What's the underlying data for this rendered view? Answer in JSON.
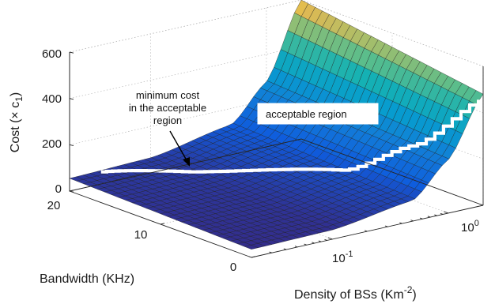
{
  "chart_data": {
    "type": "surface",
    "zlabel": "Cost (× c",
    "zlabel_sub": "1",
    "zlabel_end": ")",
    "xlabel": "Bandwidth (KHz)",
    "ylabel": "Density of BSs (Km",
    "ylabel_sup": "-2",
    "ylabel_end": ")",
    "z_ticks": [
      "0",
      "200",
      "400",
      "600"
    ],
    "z_tick_values": [
      0,
      200,
      400,
      600
    ],
    "bandwidth_ticks": [
      "0",
      "10",
      "20"
    ],
    "bandwidth_tick_values": [
      0,
      10,
      20
    ],
    "density_ticks": [
      {
        "base": "10",
        "exp": "-1",
        "value": 0.1
      },
      {
        "base": "10",
        "exp": "0",
        "value": 1
      }
    ],
    "zlim": [
      0,
      600
    ],
    "bandwidth_range": [
      0,
      20
    ],
    "density_range": [
      0.02,
      2
    ],
    "density_scale": "log",
    "grid": true,
    "colormap": "parula",
    "surface_samples": {
      "density": [
        0.02,
        0.1,
        0.5,
        1,
        2
      ],
      "cost_at_bandwidth_0": [
        35,
        40,
        90,
        230,
        480
      ],
      "cost_at_bandwidth_20": [
        55,
        65,
        130,
        280,
        600
      ]
    },
    "annotations": {
      "min_cost": [
        "minimum cost",
        "in the acceptable",
        "region"
      ],
      "acceptable_region": "acceptable region"
    }
  }
}
